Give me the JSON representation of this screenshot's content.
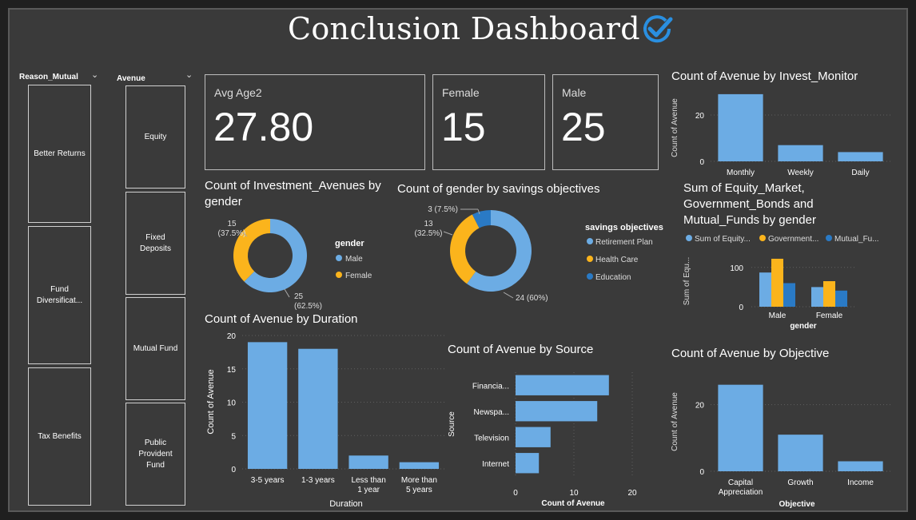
{
  "title": "Conclusion Dashboard",
  "colors": {
    "blue": "#6cace4",
    "orange": "#fbb41c",
    "dark_blue": "#2a7ac5",
    "grid": "#5f5f5f"
  },
  "slicers": {
    "reason": {
      "header": "Reason_Mutual",
      "items": [
        "Better Returns",
        "Fund Diversificat...",
        "Tax Benefits"
      ]
    },
    "avenue": {
      "header": "Avenue",
      "items": [
        "Equity",
        "Fixed Deposits",
        "Mutual Fund",
        "Public Provident Fund"
      ]
    }
  },
  "cards": {
    "avg_age": {
      "label": "Avg Age2",
      "value": "27.80"
    },
    "female": {
      "label": "Female",
      "value": "15"
    },
    "male": {
      "label": "Male",
      "value": "25"
    }
  },
  "chart_data": [
    {
      "id": "invest_monitor",
      "type": "bar",
      "title": "Count of Avenue by Invest_Monitor",
      "ylabel": "Count of Avenue",
      "categories": [
        "Monthly",
        "Weekly",
        "Daily"
      ],
      "values": [
        29,
        7,
        4
      ],
      "yticks": [
        "0",
        "20"
      ],
      "ylim": [
        0,
        30
      ]
    },
    {
      "id": "equity_gov_mf",
      "type": "bar",
      "title": "Sum of Equity_Market, Government_Bonds and Mutual_Funds by gender",
      "xlabel": "gender",
      "ylabel": "Sum of Equ...",
      "legend": [
        "Sum of Equity...",
        "Government...",
        "Mutual_Fu..."
      ],
      "categories": [
        "Male",
        "Female"
      ],
      "series": [
        {
          "name": "Sum of Equity...",
          "values": [
            87,
            50
          ]
        },
        {
          "name": "Government...",
          "values": [
            122,
            65
          ]
        },
        {
          "name": "Mutual_Fu...",
          "values": [
            60,
            41
          ]
        }
      ],
      "yticks": [
        "0",
        "100"
      ],
      "ylim": [
        0,
        130
      ]
    },
    {
      "id": "gender_donut",
      "type": "pie",
      "title": "Count of Investment_Avenues by gender",
      "legend_title": "gender",
      "categories": [
        "Male",
        "Female"
      ],
      "values": [
        25,
        15
      ],
      "labels": [
        "25\n(62.5%)",
        "15\n(37.5%)"
      ]
    },
    {
      "id": "savings_donut",
      "type": "pie",
      "title": "Count of gender by savings objectives",
      "legend_title": "savings objectives",
      "categories": [
        "Retirement Plan",
        "Health Care",
        "Education"
      ],
      "values": [
        24,
        13,
        3
      ],
      "labels": [
        "24 (60%)",
        "13\n(32.5%)",
        "3 (7.5%)"
      ]
    },
    {
      "id": "duration",
      "type": "bar",
      "title": "Count of Avenue by Duration",
      "xlabel": "Duration",
      "ylabel": "Count of Avenue",
      "categories": [
        "3-5 years",
        "1-3 years",
        "Less than 1 year",
        "More than 5 years"
      ],
      "values": [
        19,
        18,
        2,
        1
      ],
      "yticks": [
        "0",
        "5",
        "10",
        "15",
        "20"
      ],
      "ylim": [
        0,
        20
      ]
    },
    {
      "id": "source",
      "type": "bar",
      "title": "Count of Avenue by Source",
      "xlabel": "Count of Avenue",
      "ylabel": "Source",
      "categories": [
        "Financia...",
        "Newspa...",
        "Television",
        "Internet"
      ],
      "values": [
        16,
        14,
        6,
        4
      ],
      "xticks": [
        "0",
        "10",
        "20"
      ],
      "xlim": [
        0,
        20
      ]
    },
    {
      "id": "objective",
      "type": "bar",
      "title": "Count of Avenue by Objective",
      "xlabel": "Objective",
      "ylabel": "Count of Avenue",
      "categories": [
        "Capital Appreciation",
        "Growth",
        "Income"
      ],
      "values": [
        26,
        11,
        3
      ],
      "yticks": [
        "0",
        "20"
      ],
      "ylim": [
        0,
        30
      ]
    }
  ]
}
